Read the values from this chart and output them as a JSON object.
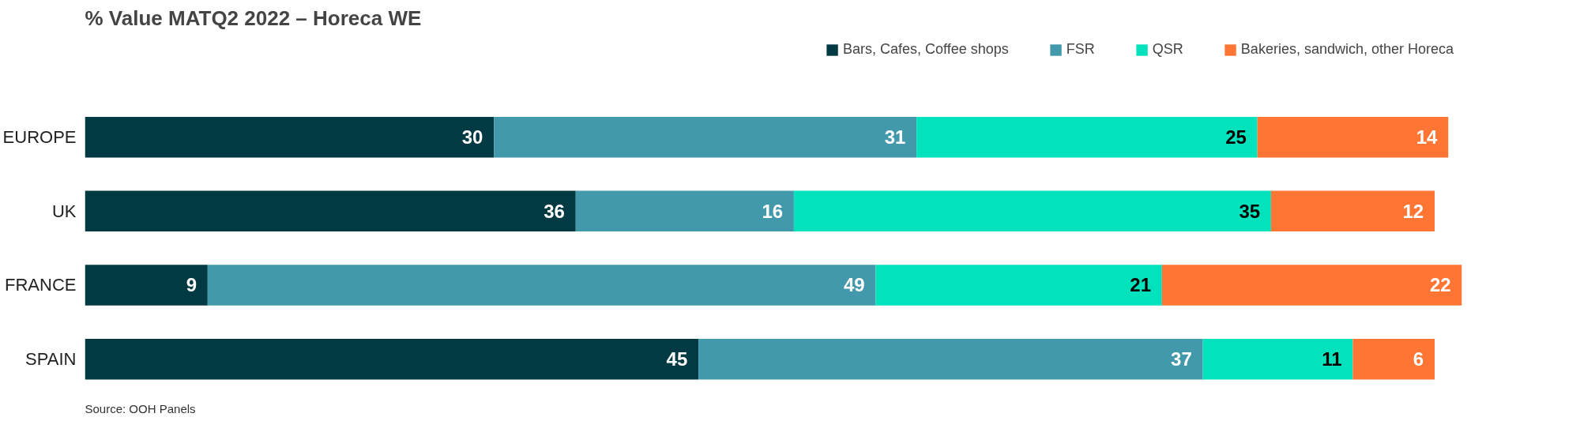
{
  "chart_data": {
    "type": "bar",
    "orientation": "horizontal",
    "stacked": true,
    "title": "% Value MATQ2 2022 – Horeca WE",
    "categories": [
      "EUROPE",
      "UK",
      "FRANCE",
      "SPAIN"
    ],
    "series": [
      {
        "name": "Bars, Cafes, Coffee shops",
        "color": "#023a44",
        "values": [
          30,
          36,
          9,
          45
        ]
      },
      {
        "name": "FSR",
        "color": "#4299ab",
        "values": [
          31,
          16,
          49,
          37
        ]
      },
      {
        "name": "QSR",
        "color": "#02e3bd",
        "values": [
          25,
          35,
          21,
          11
        ]
      },
      {
        "name": "Bakeries, sandwich, other Horeca",
        "color": "#ff7533",
        "values": [
          14,
          12,
          22,
          6
        ]
      }
    ],
    "xlim": [
      0,
      101
    ],
    "data_labels": true,
    "legend": "top right",
    "grid": false,
    "annotations": [
      "Source: OOH Panels"
    ]
  }
}
